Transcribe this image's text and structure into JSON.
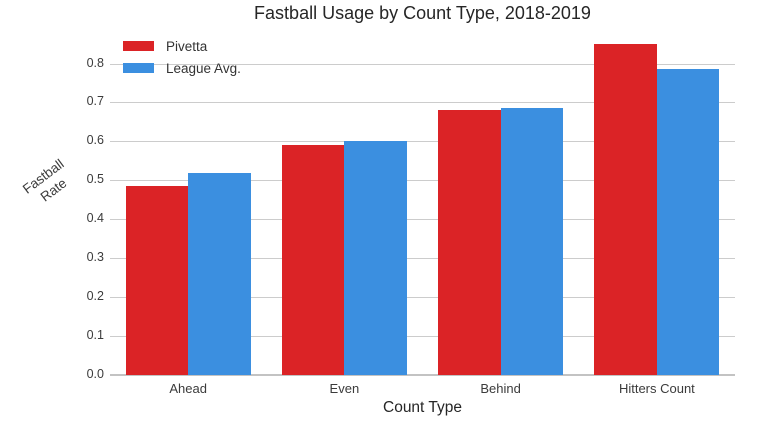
{
  "chart_data": {
    "type": "bar",
    "title": "Fastball Usage by Count Type, 2018-2019",
    "xlabel": "Count Type",
    "ylabel": "Fastball Rate",
    "ylabel_lines": [
      "Fastball",
      "Rate"
    ],
    "categories": [
      "Ahead",
      "Even",
      "Behind",
      "Hitters Count"
    ],
    "series": [
      {
        "name": "Pivetta",
        "color": "#db2326",
        "values": [
          0.485,
          0.59,
          0.68,
          0.85
        ]
      },
      {
        "name": "League Avg.",
        "color": "#3b8fe0",
        "values": [
          0.52,
          0.6,
          0.685,
          0.785
        ]
      }
    ],
    "yticks": [
      "0.0",
      "0.1",
      "0.2",
      "0.3",
      "0.4",
      "0.5",
      "0.6",
      "0.7",
      "0.8"
    ],
    "ylim": [
      0,
      0.886
    ],
    "grid": "horizontal",
    "legend_position": "upper-left",
    "colors": {
      "grid": "#cccccc",
      "axis_line": "#c3c3c3",
      "tick_text": "#3b3b3b",
      "title_text": "#262626",
      "background": "#ffffff"
    }
  }
}
